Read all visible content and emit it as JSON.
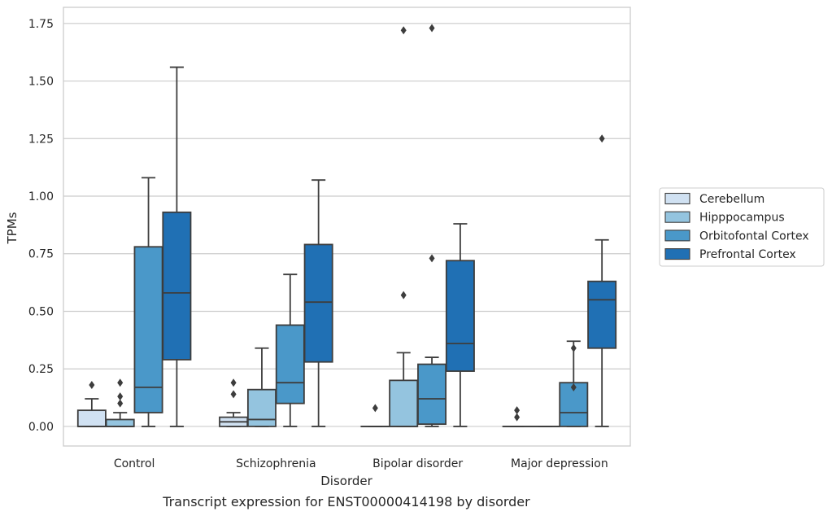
{
  "chart_data": {
    "type": "boxplot",
    "caption": "Transcript expression for ENST00000414198 by disorder",
    "xlabel": "Disorder",
    "ylabel": "TPMs",
    "ylim": [
      -0.085,
      1.82
    ],
    "yticks": [
      "0.00",
      "0.25",
      "0.50",
      "0.75",
      "1.00",
      "1.25",
      "1.50",
      "1.75"
    ],
    "grid": true,
    "legend_position": "right",
    "categories": [
      "Control",
      "Schizophrenia",
      "Bipolar disorder",
      "Major depression"
    ],
    "series": [
      {
        "name": "Cerebellum",
        "color": "#d0e1f2",
        "boxes": [
          {
            "min": 0.0,
            "q1": 0.0,
            "median": 0.0,
            "q3": 0.07,
            "max": 0.12,
            "outliers": [
              0.18
            ]
          },
          {
            "min": 0.0,
            "q1": 0.0,
            "median": 0.02,
            "q3": 0.04,
            "max": 0.06,
            "outliers": [
              0.14,
              0.19
            ]
          },
          {
            "min": 0.0,
            "q1": 0.0,
            "median": 0.0,
            "q3": 0.0,
            "max": 0.0,
            "outliers": [
              0.08
            ]
          },
          {
            "min": 0.0,
            "q1": 0.0,
            "median": 0.0,
            "q3": 0.0,
            "max": 0.0,
            "outliers": [
              0.04,
              0.07
            ]
          }
        ]
      },
      {
        "name": "Hipppocampus",
        "color": "#94c4df",
        "boxes": [
          {
            "min": 0.0,
            "q1": 0.0,
            "median": 0.0,
            "q3": 0.03,
            "max": 0.06,
            "outliers": [
              0.1,
              0.13,
              0.19
            ]
          },
          {
            "min": 0.0,
            "q1": 0.0,
            "median": 0.03,
            "q3": 0.16,
            "max": 0.34,
            "outliers": []
          },
          {
            "min": 0.0,
            "q1": 0.0,
            "median": 0.0,
            "q3": 0.2,
            "max": 0.32,
            "outliers": [
              0.57,
              1.72
            ]
          },
          {
            "min": 0.0,
            "q1": 0.0,
            "median": 0.0,
            "q3": 0.0,
            "max": 0.0,
            "outliers": []
          }
        ]
      },
      {
        "name": "Orbitofontal Cortex",
        "color": "#4a98c9",
        "boxes": [
          {
            "min": 0.0,
            "q1": 0.06,
            "median": 0.17,
            "q3": 0.78,
            "max": 1.08,
            "outliers": []
          },
          {
            "min": 0.0,
            "q1": 0.1,
            "median": 0.19,
            "q3": 0.44,
            "max": 0.66,
            "outliers": []
          },
          {
            "min": 0.0,
            "q1": 0.01,
            "median": 0.12,
            "q3": 0.27,
            "max": 0.3,
            "outliers": [
              0.73,
              1.73
            ]
          },
          {
            "min": 0.0,
            "q1": 0.0,
            "median": 0.06,
            "q3": 0.19,
            "max": 0.37,
            "outliers": [
              0.17,
              0.34
            ]
          }
        ]
      },
      {
        "name": "Prefrontal Cortex",
        "color": "#2070b4",
        "boxes": [
          {
            "min": 0.0,
            "q1": 0.29,
            "median": 0.58,
            "q3": 0.93,
            "max": 1.56,
            "outliers": []
          },
          {
            "min": 0.0,
            "q1": 0.28,
            "median": 0.54,
            "q3": 0.79,
            "max": 1.07,
            "outliers": []
          },
          {
            "min": 0.0,
            "q1": 0.24,
            "median": 0.36,
            "q3": 0.72,
            "max": 0.88,
            "outliers": []
          },
          {
            "min": 0.0,
            "q1": 0.34,
            "median": 0.55,
            "q3": 0.63,
            "max": 0.81,
            "outliers": [
              1.25
            ]
          }
        ]
      }
    ]
  }
}
